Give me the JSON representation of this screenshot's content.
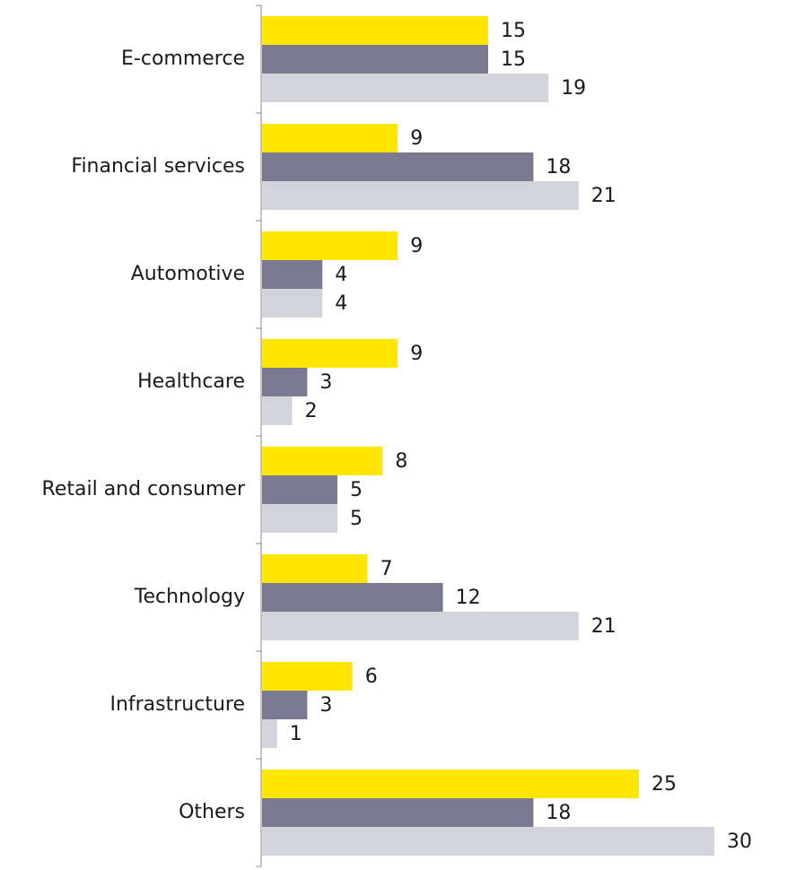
{
  "chart_data": {
    "type": "bar",
    "orientation": "horizontal",
    "categories": [
      "E-commerce",
      "Financial services",
      "Automotive",
      "Healthcare",
      "Retail and consumer",
      "Technology",
      "Infrastructure",
      "Others"
    ],
    "series": [
      {
        "values": [
          15,
          9,
          9,
          9,
          8,
          7,
          6,
          25
        ],
        "color": "#FFE600"
      },
      {
        "values": [
          15,
          18,
          4,
          3,
          5,
          12,
          3,
          18
        ],
        "color": "#7B7A92"
      },
      {
        "values": [
          19,
          21,
          4,
          2,
          5,
          21,
          1,
          30
        ],
        "color": "#D3D3DB"
      }
    ],
    "title": "",
    "xlabel": "",
    "ylabel": "",
    "xlim": [
      0,
      30
    ],
    "grid": false,
    "legend": "none",
    "data_labels": true
  }
}
